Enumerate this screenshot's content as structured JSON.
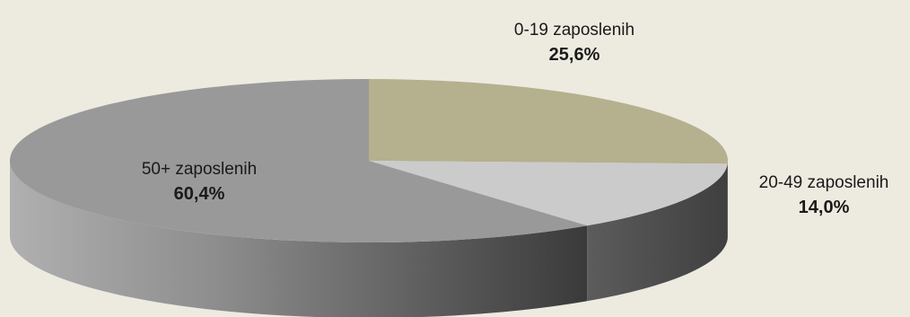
{
  "chart_data": {
    "type": "pie",
    "style": "3d",
    "title": "",
    "slices": [
      {
        "label": "0-19 zaposlenih",
        "value_label": "25,6%",
        "value": 25.6,
        "color": "#b5b08e"
      },
      {
        "label": "20-49 zaposlenih",
        "value_label": "14,0%",
        "value": 14.0,
        "color": "#cbcbcb"
      },
      {
        "label": "50+ zaposlenih",
        "value_label": "60,4%",
        "value": 60.4,
        "color": "#999999"
      }
    ],
    "legend": "none",
    "background": "#edeae0"
  }
}
